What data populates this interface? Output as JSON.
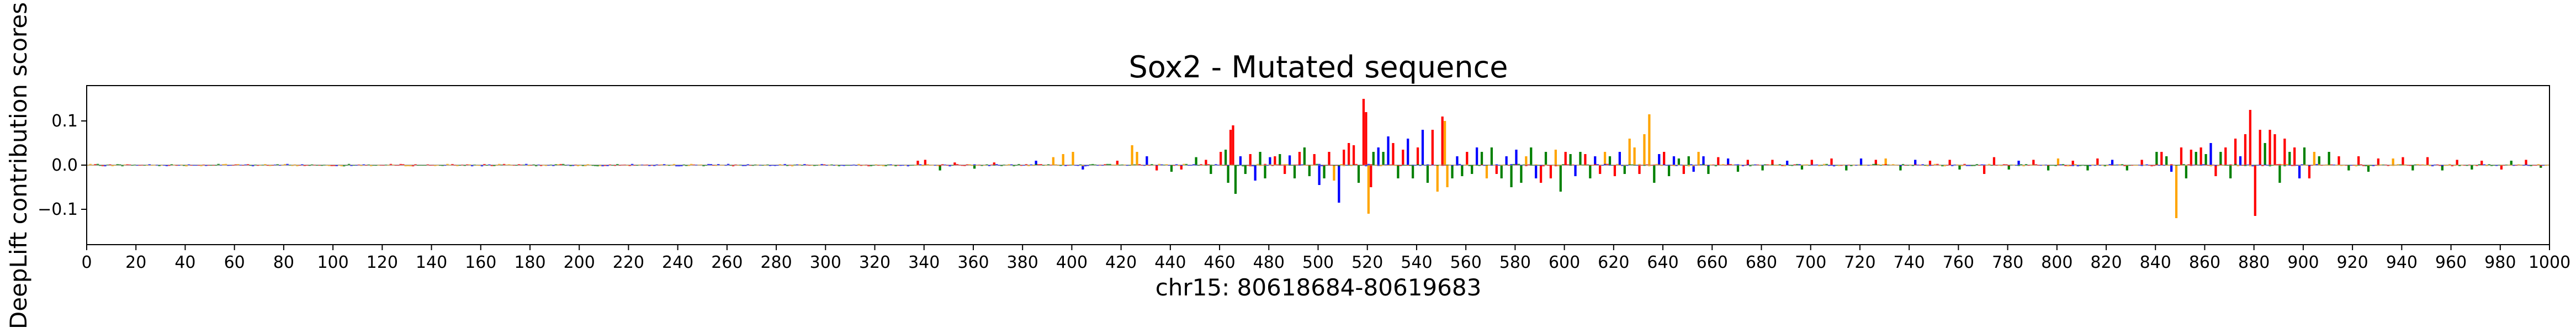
{
  "chart_data": {
    "type": "bar",
    "title": "Sox2 - Mutated sequence",
    "xlabel": "chr15: 80618684-80619683",
    "ylabel": "DeepLift contribution scores",
    "xlim": [
      0,
      1000
    ],
    "ylim": [
      -0.18,
      0.18
    ],
    "x_ticks": [
      0,
      20,
      40,
      60,
      80,
      100,
      120,
      140,
      160,
      180,
      200,
      220,
      240,
      260,
      280,
      300,
      320,
      340,
      360,
      380,
      400,
      420,
      440,
      460,
      480,
      500,
      520,
      540,
      560,
      580,
      600,
      620,
      640,
      660,
      680,
      700,
      720,
      740,
      760,
      780,
      800,
      820,
      840,
      860,
      880,
      900,
      920,
      940,
      960,
      980,
      1000
    ],
    "x_tick_labels": [
      "0",
      "20",
      "40",
      "60",
      "80",
      "100",
      "120",
      "140",
      "160",
      "180",
      "200",
      "220",
      "240",
      "260",
      "280",
      "300",
      "320",
      "340",
      "360",
      "380",
      "400",
      "420",
      "440",
      "460",
      "480",
      "500",
      "520",
      "540",
      "560",
      "580",
      "600",
      "620",
      "640",
      "660",
      "680",
      "700",
      "720",
      "740",
      "760",
      "780",
      "800",
      "820",
      "840",
      "860",
      "880",
      "900",
      "920",
      "940",
      "960",
      "980",
      "1000"
    ],
    "y_ticks": [
      -0.1,
      0.0,
      0.1
    ],
    "y_tick_labels": [
      "−0.1",
      "0.0",
      "0.1"
    ],
    "grid": false,
    "legend": "none",
    "base_colors": {
      "A": "#008000",
      "C": "#0000ff",
      "G": "#ffa500",
      "T": "#ff0000"
    },
    "series": [
      {
        "values": [
          [
            337,
            "T",
            0.01
          ],
          [
            340,
            "T",
            0.012
          ],
          [
            346,
            "A",
            -0.012
          ],
          [
            352,
            "T",
            0.006
          ],
          [
            360,
            "A",
            -0.008
          ],
          [
            368,
            "T",
            0.006
          ],
          [
            385,
            "C",
            0.01
          ],
          [
            392,
            "G",
            0.018
          ],
          [
            396,
            "G",
            0.025
          ],
          [
            400,
            "G",
            0.03
          ],
          [
            404,
            "C",
            -0.01
          ],
          [
            418,
            "T",
            0.01
          ],
          [
            424,
            "G",
            0.045
          ],
          [
            426,
            "G",
            0.03
          ],
          [
            430,
            "C",
            0.02
          ],
          [
            434,
            "T",
            -0.012
          ],
          [
            440,
            "A",
            -0.015
          ],
          [
            444,
            "T",
            -0.01
          ],
          [
            450,
            "A",
            0.018
          ],
          [
            454,
            "T",
            0.012
          ],
          [
            456,
            "A",
            -0.02
          ],
          [
            460,
            "T",
            0.03
          ],
          [
            462,
            "A",
            0.035
          ],
          [
            463,
            "A",
            -0.04
          ],
          [
            464,
            "T",
            0.08
          ],
          [
            465,
            "T",
            0.09
          ],
          [
            466,
            "A",
            -0.065
          ],
          [
            468,
            "C",
            0.02
          ],
          [
            470,
            "A",
            -0.02
          ],
          [
            472,
            "T",
            0.025
          ],
          [
            474,
            "C",
            -0.035
          ],
          [
            476,
            "A",
            0.03
          ],
          [
            478,
            "A",
            -0.03
          ],
          [
            480,
            "C",
            0.018
          ],
          [
            482,
            "T",
            0.02
          ],
          [
            484,
            "A",
            0.025
          ],
          [
            486,
            "T",
            -0.02
          ],
          [
            488,
            "C",
            0.022
          ],
          [
            490,
            "A",
            -0.03
          ],
          [
            492,
            "T",
            0.03
          ],
          [
            494,
            "A",
            0.04
          ],
          [
            496,
            "A",
            -0.025
          ],
          [
            498,
            "T",
            0.025
          ],
          [
            500,
            "C",
            -0.045
          ],
          [
            502,
            "A",
            -0.03
          ],
          [
            504,
            "T",
            0.03
          ],
          [
            506,
            "G",
            -0.035
          ],
          [
            508,
            "C",
            -0.085
          ],
          [
            510,
            "T",
            0.035
          ],
          [
            512,
            "T",
            0.05
          ],
          [
            514,
            "T",
            0.045
          ],
          [
            516,
            "A",
            -0.04
          ],
          [
            518,
            "T",
            0.15
          ],
          [
            519,
            "T",
            0.12
          ],
          [
            520,
            "G",
            -0.11
          ],
          [
            521,
            "T",
            -0.05
          ],
          [
            522,
            "A",
            0.03
          ],
          [
            524,
            "C",
            0.04
          ],
          [
            526,
            "A",
            0.03
          ],
          [
            528,
            "C",
            0.065
          ],
          [
            530,
            "T",
            0.05
          ],
          [
            532,
            "A",
            -0.03
          ],
          [
            534,
            "T",
            0.035
          ],
          [
            536,
            "C",
            0.06
          ],
          [
            538,
            "A",
            -0.03
          ],
          [
            540,
            "T",
            0.04
          ],
          [
            542,
            "C",
            0.08
          ],
          [
            544,
            "A",
            -0.04
          ],
          [
            546,
            "T",
            0.08
          ],
          [
            548,
            "G",
            -0.06
          ],
          [
            550,
            "T",
            0.11
          ],
          [
            551,
            "G",
            0.1
          ],
          [
            552,
            "G",
            -0.05
          ],
          [
            554,
            "A",
            -0.03
          ],
          [
            556,
            "C",
            0.02
          ],
          [
            558,
            "A",
            -0.025
          ],
          [
            560,
            "T",
            0.03
          ],
          [
            562,
            "A",
            -0.02
          ],
          [
            564,
            "C",
            0.04
          ],
          [
            566,
            "A",
            0.03
          ],
          [
            568,
            "G",
            -0.03
          ],
          [
            570,
            "A",
            0.04
          ],
          [
            572,
            "T",
            -0.02
          ],
          [
            574,
            "A",
            -0.03
          ],
          [
            576,
            "C",
            0.02
          ],
          [
            578,
            "A",
            -0.05
          ],
          [
            580,
            "C",
            0.035
          ],
          [
            582,
            "A",
            -0.04
          ],
          [
            584,
            "G",
            0.02
          ],
          [
            586,
            "A",
            0.04
          ],
          [
            588,
            "C",
            -0.03
          ],
          [
            590,
            "T",
            -0.04
          ],
          [
            592,
            "A",
            0.03
          ],
          [
            594,
            "T",
            -0.03
          ],
          [
            596,
            "G",
            0.035
          ],
          [
            598,
            "A",
            -0.06
          ],
          [
            600,
            "T",
            0.03
          ],
          [
            602,
            "A",
            0.025
          ],
          [
            604,
            "C",
            -0.025
          ],
          [
            606,
            "A",
            0.03
          ],
          [
            608,
            "T",
            0.025
          ],
          [
            610,
            "A",
            -0.03
          ],
          [
            612,
            "C",
            0.02
          ],
          [
            614,
            "T",
            -0.02
          ],
          [
            616,
            "G",
            0.03
          ],
          [
            618,
            "A",
            0.02
          ],
          [
            620,
            "T",
            -0.025
          ],
          [
            622,
            "C",
            0.03
          ],
          [
            624,
            "A",
            -0.02
          ],
          [
            626,
            "G",
            0.06
          ],
          [
            628,
            "G",
            0.04
          ],
          [
            630,
            "T",
            -0.02
          ],
          [
            632,
            "G",
            0.07
          ],
          [
            634,
            "G",
            0.115
          ],
          [
            636,
            "A",
            -0.04
          ],
          [
            638,
            "C",
            0.025
          ],
          [
            640,
            "T",
            0.03
          ],
          [
            642,
            "A",
            -0.025
          ],
          [
            644,
            "C",
            0.02
          ],
          [
            646,
            "A",
            0.015
          ],
          [
            648,
            "T",
            -0.02
          ],
          [
            650,
            "A",
            0.02
          ],
          [
            652,
            "C",
            -0.015
          ],
          [
            654,
            "G",
            0.03
          ],
          [
            656,
            "C",
            0.02
          ],
          [
            658,
            "A",
            -0.02
          ],
          [
            662,
            "T",
            0.018
          ],
          [
            666,
            "C",
            0.015
          ],
          [
            670,
            "A",
            -0.015
          ],
          [
            674,
            "T",
            0.012
          ],
          [
            680,
            "A",
            -0.012
          ],
          [
            684,
            "T",
            0.012
          ],
          [
            690,
            "C",
            0.01
          ],
          [
            696,
            "A",
            -0.01
          ],
          [
            700,
            "T",
            0.012
          ],
          [
            708,
            "T",
            0.015
          ],
          [
            714,
            "A",
            -0.012
          ],
          [
            720,
            "C",
            0.015
          ],
          [
            726,
            "T",
            0.012
          ],
          [
            730,
            "G",
            0.015
          ],
          [
            736,
            "A",
            -0.012
          ],
          [
            742,
            "C",
            0.012
          ],
          [
            748,
            "T",
            0.01
          ],
          [
            756,
            "T",
            0.012
          ],
          [
            760,
            "A",
            -0.01
          ],
          [
            770,
            "T",
            -0.02
          ],
          [
            774,
            "T",
            0.018
          ],
          [
            780,
            "A",
            -0.01
          ],
          [
            784,
            "C",
            0.01
          ],
          [
            790,
            "T",
            0.012
          ],
          [
            796,
            "A",
            -0.012
          ],
          [
            800,
            "G",
            0.015
          ],
          [
            806,
            "T",
            0.01
          ],
          [
            812,
            "A",
            -0.012
          ],
          [
            816,
            "T",
            0.015
          ],
          [
            822,
            "C",
            0.012
          ],
          [
            828,
            "A",
            -0.012
          ],
          [
            834,
            "T",
            0.012
          ],
          [
            840,
            "A",
            0.03
          ],
          [
            842,
            "T",
            0.03
          ],
          [
            844,
            "A",
            0.02
          ],
          [
            846,
            "C",
            -0.015
          ],
          [
            848,
            "G",
            -0.12
          ],
          [
            850,
            "T",
            0.04
          ],
          [
            852,
            "A",
            -0.03
          ],
          [
            854,
            "T",
            0.035
          ],
          [
            856,
            "A",
            0.03
          ],
          [
            858,
            "T",
            0.04
          ],
          [
            860,
            "A",
            0.025
          ],
          [
            862,
            "C",
            0.05
          ],
          [
            864,
            "T",
            -0.025
          ],
          [
            866,
            "A",
            0.03
          ],
          [
            868,
            "T",
            0.04
          ],
          [
            870,
            "A",
            -0.03
          ],
          [
            872,
            "T",
            0.06
          ],
          [
            874,
            "C",
            0.02
          ],
          [
            876,
            "T",
            0.07
          ],
          [
            878,
            "T",
            0.125
          ],
          [
            880,
            "T",
            -0.115
          ],
          [
            882,
            "T",
            0.08
          ],
          [
            884,
            "A",
            0.05
          ],
          [
            886,
            "T",
            0.08
          ],
          [
            888,
            "T",
            0.07
          ],
          [
            890,
            "A",
            -0.04
          ],
          [
            892,
            "T",
            0.06
          ],
          [
            894,
            "A",
            0.03
          ],
          [
            896,
            "T",
            0.04
          ],
          [
            898,
            "C",
            -0.03
          ],
          [
            900,
            "A",
            0.04
          ],
          [
            902,
            "T",
            -0.03
          ],
          [
            904,
            "G",
            0.03
          ],
          [
            906,
            "A",
            0.02
          ],
          [
            910,
            "A",
            0.03
          ],
          [
            914,
            "T",
            0.02
          ],
          [
            918,
            "A",
            -0.012
          ],
          [
            922,
            "T",
            0.02
          ],
          [
            926,
            "A",
            -0.015
          ],
          [
            930,
            "T",
            0.015
          ],
          [
            936,
            "G",
            0.015
          ],
          [
            940,
            "T",
            0.018
          ],
          [
            944,
            "A",
            -0.012
          ],
          [
            950,
            "T",
            0.018
          ],
          [
            956,
            "A",
            -0.012
          ],
          [
            962,
            "T",
            0.012
          ],
          [
            968,
            "A",
            -0.01
          ],
          [
            972,
            "T",
            0.01
          ],
          [
            980,
            "T",
            -0.01
          ],
          [
            984,
            "A",
            0.01
          ],
          [
            990,
            "T",
            0.012
          ],
          [
            996,
            "A",
            -0.006
          ]
        ]
      }
    ]
  }
}
